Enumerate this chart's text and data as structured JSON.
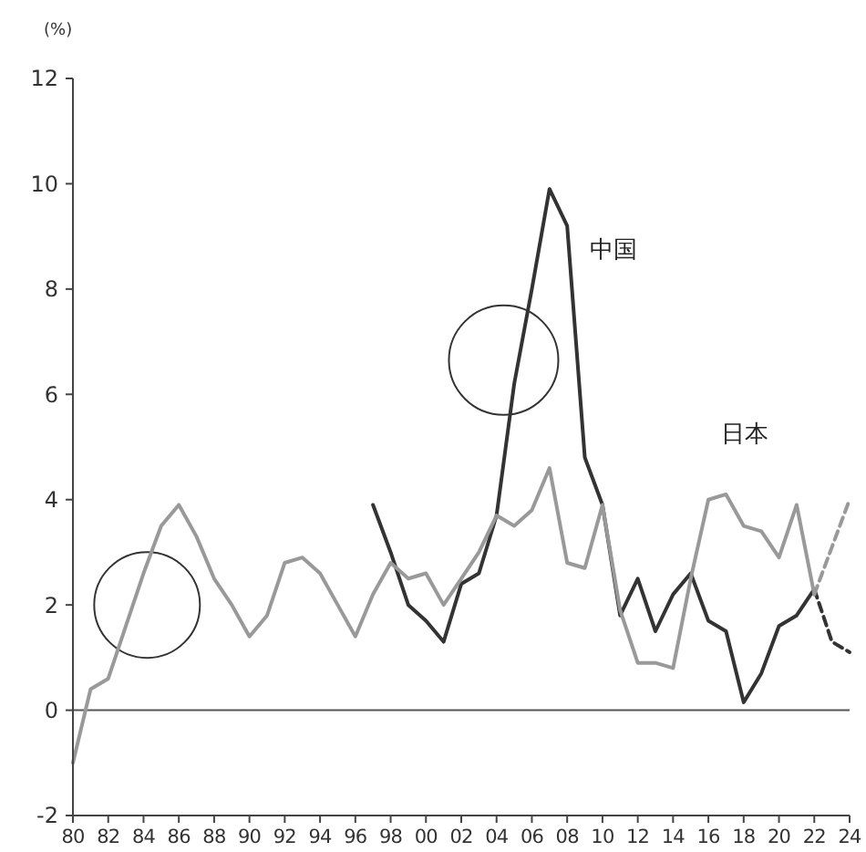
{
  "chart_data": {
    "type": "line",
    "ylabel": "(%)",
    "x": [
      1980,
      1981,
      1982,
      1983,
      1984,
      1985,
      1986,
      1987,
      1988,
      1989,
      1990,
      1991,
      1992,
      1993,
      1994,
      1995,
      1996,
      1997,
      1998,
      1999,
      2000,
      2001,
      2002,
      2003,
      2004,
      2005,
      2006,
      2007,
      2008,
      2009,
      2010,
      2011,
      2012,
      2013,
      2014,
      2015,
      2016,
      2017,
      2018,
      2019,
      2020,
      2021,
      2022
    ],
    "series": [
      {
        "name": "中国",
        "color": "#333333",
        "x": [
          1997,
          1998,
          1999,
          2000,
          2001,
          2002,
          2003,
          2004,
          2005,
          2006,
          2007,
          2008,
          2009,
          2010,
          2011,
          2012,
          2013,
          2014,
          2015,
          2016,
          2017,
          2018,
          2019,
          2020,
          2021,
          2022
        ],
        "values": [
          3.9,
          3.0,
          2.0,
          1.7,
          1.3,
          2.4,
          2.6,
          3.7,
          6.2,
          8.0,
          9.9,
          9.2,
          4.8,
          3.9,
          1.8,
          2.5,
          1.5,
          2.2,
          2.6,
          1.7,
          1.5,
          0.15,
          0.7,
          1.6,
          1.8,
          2.3
        ]
      },
      {
        "color": "#333333",
        "x": [
          2022,
          2023,
          2024
        ],
        "values": [
          2.3,
          1.3,
          1.1
        ],
        "line_style": "dashed"
      },
      {
        "name": "日本",
        "color": "#999999",
        "values": [
          -1.0,
          0.4,
          0.6,
          1.6,
          2.6,
          3.5,
          3.9,
          3.3,
          2.5,
          2.0,
          1.4,
          1.8,
          2.8,
          2.9,
          2.6,
          2.0,
          1.4,
          2.2,
          2.8,
          2.5,
          2.6,
          2.0,
          2.5,
          3.0,
          3.7,
          3.5,
          3.8,
          4.6,
          2.8,
          2.7,
          3.9,
          1.9,
          0.9,
          0.9,
          0.8,
          2.5,
          4.0,
          4.1,
          3.5,
          3.4,
          2.9,
          3.9,
          2.2
        ]
      },
      {
        "color": "#999999",
        "x": [
          2022,
          2023,
          2024
        ],
        "values": [
          2.2,
          3.1,
          4.0
        ],
        "line_style": "dashed"
      }
    ],
    "line_style": "solid",
    "marker": "none",
    "grid": false,
    "xlim": [
      1980,
      2024
    ],
    "xticks": [
      {
        "value": 1980,
        "label": "80"
      },
      {
        "value": 1982,
        "label": "82"
      },
      {
        "value": 1984,
        "label": "84"
      },
      {
        "value": 1986,
        "label": "86"
      },
      {
        "value": 1988,
        "label": "88"
      },
      {
        "value": 1990,
        "label": "90"
      },
      {
        "value": 1992,
        "label": "92"
      },
      {
        "value": 1994,
        "label": "94"
      },
      {
        "value": 1996,
        "label": "96"
      },
      {
        "value": 1998,
        "label": "98"
      },
      {
        "value": 2000,
        "label": "00"
      },
      {
        "value": 2002,
        "label": "02"
      },
      {
        "value": 2004,
        "label": "04"
      },
      {
        "value": 2006,
        "label": "06"
      },
      {
        "value": 2008,
        "label": "08"
      },
      {
        "value": 2010,
        "label": "10"
      },
      {
        "value": 2012,
        "label": "12"
      },
      {
        "value": 2014,
        "label": "14"
      },
      {
        "value": 2016,
        "label": "16"
      },
      {
        "value": 2018,
        "label": "18"
      },
      {
        "value": 2020,
        "label": "20"
      },
      {
        "value": 2022,
        "label": "22"
      },
      {
        "value": 2024,
        "label": "24"
      }
    ],
    "ylim": [
      -2,
      12
    ],
    "yticks": [
      -2,
      0,
      2,
      4,
      6,
      8,
      10,
      12
    ],
    "ref_lines": [
      {
        "axis": "y",
        "value": 0,
        "color": "#555555"
      }
    ]
  }
}
